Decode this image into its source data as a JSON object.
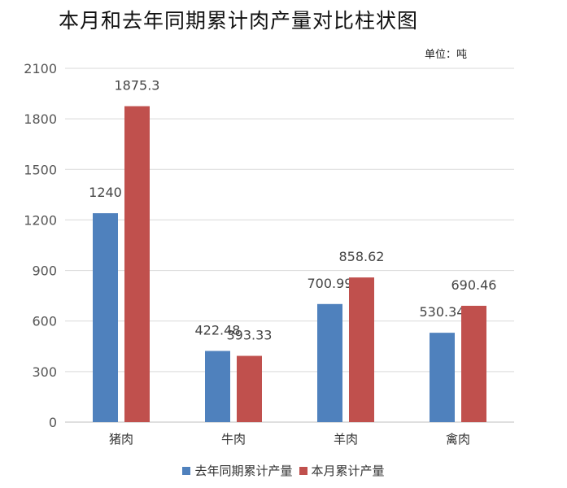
{
  "chart_data": {
    "type": "bar",
    "title": "本月和去年同期累计肉产量对比柱状图",
    "unit_label": "单位：吨",
    "categories": [
      "猪肉",
      "牛肉",
      "羊肉",
      "禽肉"
    ],
    "series": [
      {
        "name": "去年同期累计产量",
        "color": "#4F81BD",
        "values": [
          1240,
          422.48,
          700.99,
          530.34
        ],
        "labels": [
          "1240",
          "422.48",
          "700.99",
          "530.34"
        ]
      },
      {
        "name": "本月累计产量",
        "color": "#C0504D",
        "values": [
          1875.3,
          393.33,
          858.62,
          690.46
        ],
        "labels": [
          "1875.3",
          "393.33",
          "858.62",
          "690.46"
        ]
      }
    ],
    "yticks": [
      "0",
      "300",
      "600",
      "900",
      "1200",
      "1500",
      "1800",
      "2100"
    ],
    "ylim": [
      0,
      2100
    ],
    "grid": true,
    "legend_position": "bottom"
  }
}
